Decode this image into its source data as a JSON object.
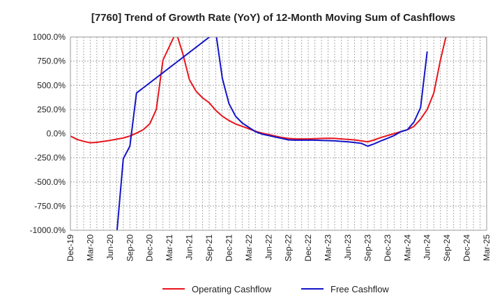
{
  "chart_data": {
    "type": "line",
    "title": "[7760]  Trend of Growth Rate (YoY) of 12-Month Moving Sum of Cashflows",
    "xlabel": "",
    "ylabel": "",
    "ylim": [
      -1000,
      1000
    ],
    "y_ticks": [
      "1000.0%",
      "750.0%",
      "500.0%",
      "250.0%",
      "0.0%",
      "-250.0%",
      "-500.0%",
      "-750.0%",
      "-1000.0%"
    ],
    "x_ticks": [
      "Dec-19",
      "Mar-20",
      "Jun-20",
      "Sep-20",
      "Dec-20",
      "Mar-21",
      "Jun-21",
      "Sep-21",
      "Dec-21",
      "Mar-22",
      "Jun-22",
      "Sep-22",
      "Dec-22",
      "Mar-23",
      "Jun-23",
      "Sep-23",
      "Dec-23",
      "Mar-24",
      "Jun-24",
      "Sep-24",
      "Dec-24",
      "Mar-25"
    ],
    "x_range": [
      "2019-12",
      "2025-03"
    ],
    "grid": true,
    "legend_position": "bottom",
    "series": [
      {
        "name": "Operating Cashflow",
        "color": "#e8141c",
        "points": [
          [
            "2019-12",
            -25
          ],
          [
            "2020-01",
            -60
          ],
          [
            "2020-02",
            -80
          ],
          [
            "2020-03",
            -95
          ],
          [
            "2020-04",
            -90
          ],
          [
            "2020-05",
            -80
          ],
          [
            "2020-06",
            -70
          ],
          [
            "2020-07",
            -58
          ],
          [
            "2020-08",
            -45
          ],
          [
            "2020-09",
            -25
          ],
          [
            "2020-10",
            5
          ],
          [
            "2020-11",
            40
          ],
          [
            "2020-12",
            100
          ],
          [
            "2021-01",
            250
          ],
          [
            "2021-02",
            760
          ],
          [
            "2021-04",
            1050
          ],
          [
            "2021-05",
            830
          ],
          [
            "2021-06",
            560
          ],
          [
            "2021-07",
            440
          ],
          [
            "2021-08",
            370
          ],
          [
            "2021-09",
            320
          ],
          [
            "2021-10",
            240
          ],
          [
            "2021-11",
            180
          ],
          [
            "2021-12",
            135
          ],
          [
            "2022-01",
            100
          ],
          [
            "2022-02",
            75
          ],
          [
            "2022-03",
            50
          ],
          [
            "2022-04",
            25
          ],
          [
            "2022-05",
            5
          ],
          [
            "2022-06",
            -10
          ],
          [
            "2022-07",
            -25
          ],
          [
            "2022-08",
            -40
          ],
          [
            "2022-09",
            -50
          ],
          [
            "2022-10",
            -55
          ],
          [
            "2022-11",
            -55
          ],
          [
            "2022-12",
            -55
          ],
          [
            "2023-01",
            -52
          ],
          [
            "2023-02",
            -50
          ],
          [
            "2023-03",
            -48
          ],
          [
            "2023-04",
            -50
          ],
          [
            "2023-05",
            -55
          ],
          [
            "2023-06",
            -60
          ],
          [
            "2023-07",
            -65
          ],
          [
            "2023-08",
            -75
          ],
          [
            "2023-09",
            -85
          ],
          [
            "2023-10",
            -65
          ],
          [
            "2023-11",
            -40
          ],
          [
            "2023-12",
            -20
          ],
          [
            "2024-01",
            0
          ],
          [
            "2024-02",
            20
          ],
          [
            "2024-03",
            40
          ],
          [
            "2024-04",
            75
          ],
          [
            "2024-05",
            150
          ],
          [
            "2024-06",
            250
          ],
          [
            "2024-07",
            420
          ],
          [
            "2024-08",
            760
          ],
          [
            "2024-09",
            1050
          ]
        ]
      },
      {
        "name": "Free Cashflow",
        "color": "#1414c8",
        "points": [
          [
            "2020-07",
            -1050
          ],
          [
            "2020-08",
            -260
          ],
          [
            "2020-09",
            -130
          ],
          [
            "2020-10",
            420
          ],
          [
            "2021-10",
            1050
          ],
          [
            "2021-11",
            570
          ],
          [
            "2021-12",
            310
          ],
          [
            "2022-01",
            180
          ],
          [
            "2022-02",
            110
          ],
          [
            "2022-03",
            65
          ],
          [
            "2022-04",
            20
          ],
          [
            "2022-05",
            -5
          ],
          [
            "2022-06",
            -20
          ],
          [
            "2022-07",
            -35
          ],
          [
            "2022-08",
            -50
          ],
          [
            "2022-09",
            -65
          ],
          [
            "2022-10",
            -68
          ],
          [
            "2022-11",
            -68
          ],
          [
            "2022-12",
            -68
          ],
          [
            "2023-01",
            -68
          ],
          [
            "2023-02",
            -70
          ],
          [
            "2023-03",
            -72
          ],
          [
            "2023-04",
            -75
          ],
          [
            "2023-05",
            -80
          ],
          [
            "2023-06",
            -85
          ],
          [
            "2023-07",
            -92
          ],
          [
            "2023-08",
            -100
          ],
          [
            "2023-09",
            -130
          ],
          [
            "2023-10",
            -105
          ],
          [
            "2023-11",
            -75
          ],
          [
            "2023-12",
            -48
          ],
          [
            "2024-01",
            -20
          ],
          [
            "2024-02",
            20
          ],
          [
            "2024-03",
            40
          ],
          [
            "2024-04",
            120
          ],
          [
            "2024-05",
            270
          ],
          [
            "2024-06",
            850
          ]
        ]
      }
    ]
  }
}
